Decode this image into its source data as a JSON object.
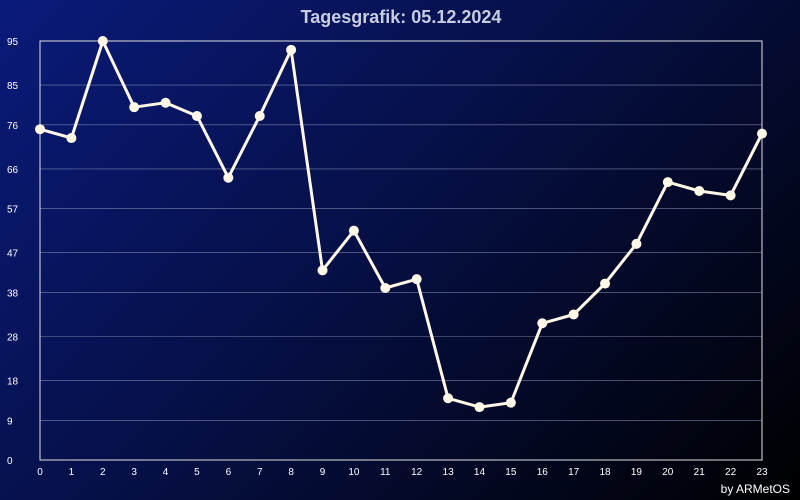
{
  "chart_data": {
    "type": "line",
    "title": "Tagesgrafik: 05.12.2024",
    "credit": "by ARMetOS",
    "x": [
      0,
      1,
      2,
      3,
      4,
      5,
      6,
      7,
      8,
      9,
      10,
      11,
      12,
      13,
      14,
      15,
      16,
      17,
      18,
      19,
      20,
      21,
      22,
      23
    ],
    "x_ticks": [
      "0",
      "1",
      "2",
      "3",
      "4",
      "5",
      "6",
      "7",
      "8",
      "9",
      "10",
      "11",
      "12",
      "13",
      "14",
      "15",
      "16",
      "17",
      "18",
      "19",
      "20",
      "21",
      "22",
      "23"
    ],
    "y_ticks": [
      0,
      9,
      18,
      28,
      38,
      47,
      57,
      66,
      76,
      85,
      95
    ],
    "ylim": [
      0,
      95
    ],
    "series": [
      {
        "color": "#fff8e6",
        "values": [
          75,
          73,
          95,
          80,
          81,
          78,
          64,
          78,
          93,
          43,
          52,
          39,
          41,
          14,
          12,
          13,
          31,
          33,
          40,
          49,
          63,
          61,
          60,
          74
        ]
      }
    ],
    "grid": true,
    "xlabel": "",
    "ylabel": ""
  }
}
